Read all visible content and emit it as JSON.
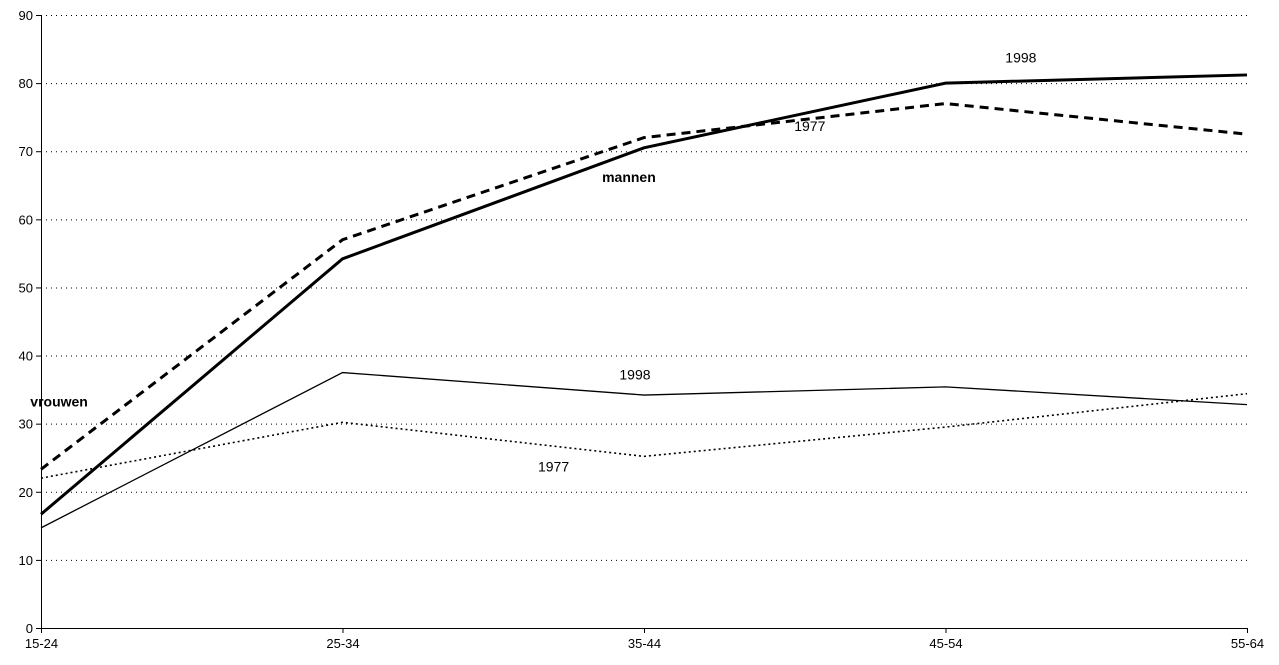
{
  "chart_data": {
    "type": "line",
    "categories": [
      "15-24",
      "25-34",
      "35-44",
      "45-54",
      "55-64"
    ],
    "ylim": [
      0,
      90
    ],
    "yticks": [
      0,
      10,
      20,
      30,
      40,
      50,
      60,
      70,
      80,
      90
    ],
    "grid": true,
    "series": [
      {
        "group": "mannen",
        "year": "1998",
        "style": "solid-thick",
        "color": "#000000",
        "values": [
          16.7,
          54.2,
          70.5,
          80.0,
          81.2
        ]
      },
      {
        "group": "mannen",
        "year": "1977",
        "style": "dashed-thick",
        "color": "#000000",
        "values": [
          23.3,
          57.0,
          72.0,
          77.0,
          72.5
        ]
      },
      {
        "group": "vrouwen",
        "year": "1998",
        "style": "solid-thin",
        "color": "#000000",
        "values": [
          14.7,
          37.5,
          34.2,
          35.4,
          32.8
        ]
      },
      {
        "group": "vrouwen",
        "year": "1977",
        "style": "dotted-thin",
        "color": "#000000",
        "values": [
          22.0,
          30.2,
          25.2,
          29.5,
          34.4
        ]
      }
    ],
    "annotations": [
      {
        "text": "1998",
        "x": 3.25,
        "y": 83,
        "bold": false
      },
      {
        "text": "1977",
        "x": 2.55,
        "y": 73,
        "bold": false
      },
      {
        "text": "mannen",
        "x": 1.95,
        "y": 65.5,
        "bold": true
      },
      {
        "text": "1998",
        "x": 1.97,
        "y": 36.5,
        "bold": false
      },
      {
        "text": "vrouwen",
        "x": 0.06,
        "y": 32.5,
        "bold": true
      },
      {
        "text": "1977",
        "x": 1.7,
        "y": 23.0,
        "bold": false
      }
    ]
  }
}
